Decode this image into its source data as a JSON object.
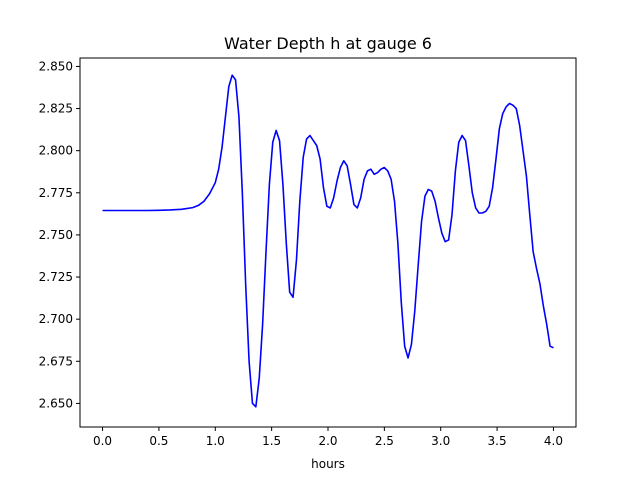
{
  "chart_data": {
    "type": "line",
    "title": "Water Depth h at gauge 6",
    "xlabel": "hours",
    "ylabel": "",
    "xlim": [
      -0.2,
      4.2
    ],
    "ylim": [
      2.636,
      2.855
    ],
    "x_ticks": [
      0.0,
      0.5,
      1.0,
      1.5,
      2.0,
      2.5,
      3.0,
      3.5,
      4.0
    ],
    "x_tick_labels": [
      "0.0",
      "0.5",
      "1.0",
      "1.5",
      "2.0",
      "2.5",
      "3.0",
      "3.5",
      "4.0"
    ],
    "y_ticks": [
      2.65,
      2.675,
      2.7,
      2.725,
      2.75,
      2.775,
      2.8,
      2.825,
      2.85
    ],
    "y_tick_labels": [
      "2.650",
      "2.675",
      "2.700",
      "2.725",
      "2.750",
      "2.775",
      "2.800",
      "2.825",
      "2.850"
    ],
    "grid": false,
    "colors": {
      "series": "#0000ff",
      "axes": "#000000",
      "background": "#ffffff"
    },
    "series": [
      {
        "x": [
          0.0,
          0.2,
          0.4,
          0.5,
          0.6,
          0.7,
          0.8,
          0.85,
          0.9,
          0.95,
          1.0,
          1.03,
          1.06,
          1.09,
          1.12,
          1.15,
          1.18,
          1.21,
          1.24,
          1.27,
          1.3,
          1.33,
          1.36,
          1.39,
          1.42,
          1.45,
          1.48,
          1.51,
          1.54,
          1.57,
          1.6,
          1.63,
          1.66,
          1.69,
          1.72,
          1.75,
          1.78,
          1.81,
          1.84,
          1.87,
          1.9,
          1.93,
          1.96,
          1.99,
          2.02,
          2.05,
          2.08,
          2.11,
          2.14,
          2.17,
          2.2,
          2.23,
          2.26,
          2.29,
          2.32,
          2.35,
          2.38,
          2.41,
          2.44,
          2.47,
          2.5,
          2.53,
          2.56,
          2.59,
          2.62,
          2.65,
          2.68,
          2.71,
          2.74,
          2.77,
          2.8,
          2.83,
          2.86,
          2.89,
          2.92,
          2.95,
          2.98,
          3.01,
          3.04,
          3.07,
          3.1,
          3.13,
          3.16,
          3.19,
          3.22,
          3.25,
          3.28,
          3.31,
          3.34,
          3.37,
          3.4,
          3.43,
          3.46,
          3.49,
          3.52,
          3.55,
          3.58,
          3.61,
          3.64,
          3.67,
          3.7,
          3.73,
          3.76,
          3.79,
          3.82,
          3.85,
          3.88,
          3.91,
          3.94,
          3.97,
          4.0
        ],
        "y": [
          2.7645,
          2.7645,
          2.7645,
          2.7646,
          2.7648,
          2.7652,
          2.7662,
          2.7675,
          2.77,
          2.7745,
          2.781,
          2.789,
          2.802,
          2.82,
          2.838,
          2.8448,
          2.842,
          2.82,
          2.775,
          2.72,
          2.675,
          2.65,
          2.648,
          2.665,
          2.697,
          2.74,
          2.78,
          2.805,
          2.812,
          2.806,
          2.78,
          2.745,
          2.716,
          2.713,
          2.735,
          2.77,
          2.796,
          2.807,
          2.809,
          2.806,
          2.803,
          2.795,
          2.778,
          2.767,
          2.766,
          2.772,
          2.782,
          2.79,
          2.794,
          2.791,
          2.78,
          2.768,
          2.766,
          2.772,
          2.783,
          2.788,
          2.789,
          2.786,
          2.787,
          2.789,
          2.79,
          2.788,
          2.783,
          2.77,
          2.745,
          2.71,
          2.684,
          2.677,
          2.685,
          2.705,
          2.732,
          2.758,
          2.773,
          2.777,
          2.776,
          2.77,
          2.76,
          2.751,
          2.746,
          2.747,
          2.762,
          2.788,
          2.805,
          2.809,
          2.806,
          2.791,
          2.775,
          2.766,
          2.763,
          2.763,
          2.764,
          2.767,
          2.778,
          2.795,
          2.813,
          2.822,
          2.826,
          2.828,
          2.827,
          2.825,
          2.815,
          2.8,
          2.785,
          2.762,
          2.74,
          2.73,
          2.721,
          2.708,
          2.697,
          2.684,
          2.683
        ]
      }
    ]
  }
}
